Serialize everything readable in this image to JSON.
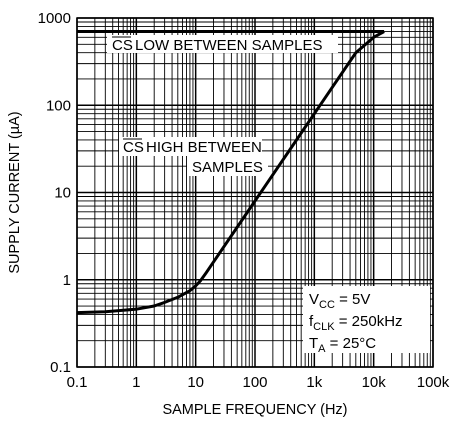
{
  "chart_data": {
    "type": "line",
    "title": "",
    "xlabel": "SAMPLE FREQUENCY (Hz)",
    "ylabel": "SUPPLY CURRENT (µA)",
    "xscale": "log",
    "yscale": "log",
    "xlim": [
      0.1,
      100000
    ],
    "ylim": [
      0.1,
      1000
    ],
    "grid": true,
    "x_tick_labels": [
      "0.1",
      "1",
      "10",
      "100",
      "1k",
      "10k",
      "100k"
    ],
    "y_tick_labels": [
      "0.1",
      "1",
      "10",
      "100",
      "1000"
    ],
    "series": [
      {
        "name": "CS LOW BETWEEN SAMPLES",
        "x": [
          0.1,
          15000
        ],
        "y": [
          700,
          700
        ]
      },
      {
        "name": "CS HIGH BETWEEN SAMPLES",
        "x": [
          0.1,
          0.3,
          1,
          2,
          3,
          5,
          8,
          10,
          12,
          15,
          20,
          30,
          50,
          100,
          200,
          500,
          1000,
          2000,
          5000,
          10000,
          15000
        ],
        "y": [
          0.42,
          0.43,
          0.46,
          0.5,
          0.55,
          0.63,
          0.75,
          0.85,
          0.97,
          1.2,
          1.6,
          2.4,
          4.0,
          8.0,
          16,
          40,
          80,
          160,
          400,
          600,
          700
        ]
      }
    ],
    "annotations": {
      "low_text": "LOW BETWEEN SAMPLES",
      "high_line1": "HIGH BETWEEN",
      "high_line2": "SAMPLES",
      "cs_symbol": "CS",
      "conditions": {
        "line1_main": "V",
        "line1_sub": "CC",
        "line1_rest": " = 5V",
        "line2_main": "f",
        "line2_sub": "CLK",
        "line2_rest": " = 250kHz",
        "line3_main": "T",
        "line3_sub": "A",
        "line3_rest": " = 25°C"
      }
    }
  }
}
